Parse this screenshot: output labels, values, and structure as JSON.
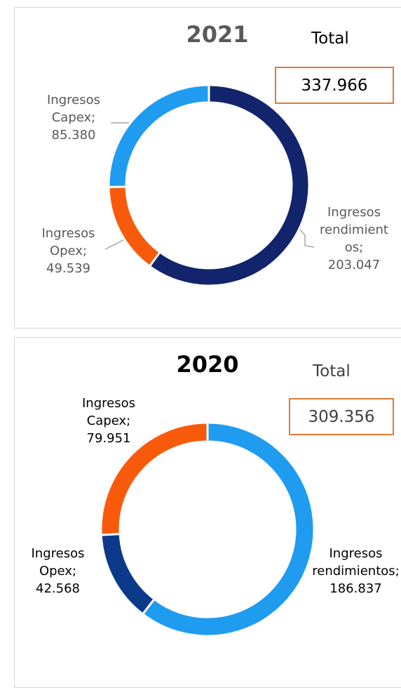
{
  "chart_data": [
    {
      "type": "donut",
      "title": "2021",
      "total_label": "Total",
      "total": 337966,
      "total_value_label": "337.966",
      "categories": [
        "Ingresos rendimientos",
        "Ingresos Opex",
        "Ingresos Capex"
      ],
      "values": [
        203047,
        49539,
        85380
      ],
      "value_labels": [
        "203.047",
        "49.539",
        "85.380"
      ],
      "colors": [
        "#12246b",
        "#f85a0c",
        "#1f9bf0"
      ]
    },
    {
      "type": "donut",
      "title": "2020",
      "total_label": "Total",
      "total": 309356,
      "total_value_label": "309.356",
      "categories": [
        "Ingresos rendimientos",
        "Ingresos Opex",
        "Ingresos Capex"
      ],
      "values": [
        186837,
        42568,
        79951
      ],
      "value_labels": [
        "186.837",
        "42.568",
        "79.951"
      ],
      "colors": [
        "#1f9bf0",
        "#0b3a8a",
        "#f85a0c"
      ]
    }
  ]
}
